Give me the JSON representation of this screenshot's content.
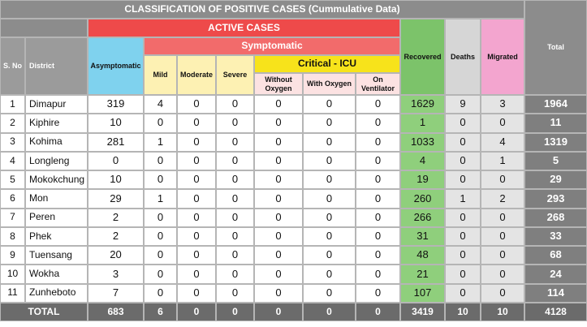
{
  "title": "CLASSIFICATION OF POSITIVE CASES (Cummulative Data)",
  "headers": {
    "s_no": "S. No",
    "district": "District",
    "active_cases": "ACTIVE CASES",
    "asymptomatic": "Asymptomatic",
    "symptomatic": "Symptomatic",
    "mild": "Mild",
    "moderate": "Moderate",
    "severe": "Severe",
    "critical_icu": "Critical - ICU",
    "without_oxygen": "Without Oxygen",
    "with_oxygen": "With Oxygen",
    "on_ventilator": "On Ventilator",
    "recovered": "Recovered",
    "deaths": "Deaths",
    "migrated": "Migrated",
    "total": "Total"
  },
  "rows": [
    [
      1,
      "Dimapur",
      319,
      4,
      0,
      0,
      0,
      0,
      0,
      1629,
      9,
      3,
      1964
    ],
    [
      2,
      "Kiphire",
      10,
      0,
      0,
      0,
      0,
      0,
      0,
      1,
      0,
      0,
      11
    ],
    [
      3,
      "Kohima",
      281,
      1,
      0,
      0,
      0,
      0,
      0,
      1033,
      0,
      4,
      1319
    ],
    [
      4,
      "Longleng",
      0,
      0,
      0,
      0,
      0,
      0,
      0,
      4,
      0,
      1,
      5
    ],
    [
      5,
      "Mokokchung",
      10,
      0,
      0,
      0,
      0,
      0,
      0,
      19,
      0,
      0,
      29
    ],
    [
      6,
      "Mon",
      29,
      1,
      0,
      0,
      0,
      0,
      0,
      260,
      1,
      2,
      293
    ],
    [
      7,
      "Peren",
      2,
      0,
      0,
      0,
      0,
      0,
      0,
      266,
      0,
      0,
      268
    ],
    [
      8,
      "Phek",
      2,
      0,
      0,
      0,
      0,
      0,
      0,
      31,
      0,
      0,
      33
    ],
    [
      9,
      "Tuensang",
      20,
      0,
      0,
      0,
      0,
      0,
      0,
      48,
      0,
      0,
      68
    ],
    [
      10,
      "Wokha",
      3,
      0,
      0,
      0,
      0,
      0,
      0,
      21,
      0,
      0,
      24
    ],
    [
      11,
      "Zunheboto",
      7,
      0,
      0,
      0,
      0,
      0,
      0,
      107,
      0,
      0,
      114
    ]
  ],
  "totals": [
    "TOTAL",
    683,
    6,
    0,
    0,
    0,
    0,
    0,
    3419,
    10,
    10,
    4128
  ]
}
